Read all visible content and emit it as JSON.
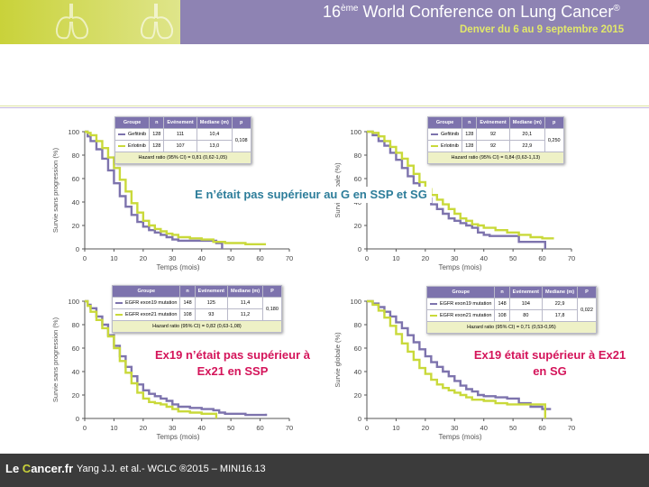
{
  "header": {
    "conference_sup": "ème",
    "conference_pre": "16",
    "conference_title": " World Conference on Lung Cancer",
    "conference_reg": "®",
    "conference_subtitle": "Denver du 6 au 9 septembre 2015"
  },
  "footer": {
    "logo_pre": "Le ",
    "logo_c": "C",
    "logo_rest": "ancer.fr",
    "reference": "Yang J.J. et al.- WCLC ®2015 – MINI16.13"
  },
  "notes": {
    "n1": "E n’était pas supérieur au G en SSP et SG",
    "n2": "Ex19 n’était pas supérieur à Ex21 en SSP",
    "n3": "Ex19 était supérieur à Ex21 en SG"
  },
  "colors": {
    "purple": "#7d73ad",
    "green": "#c9d93a",
    "header_purple": "#8e83b3"
  },
  "tables": [
    {
      "headers": [
        "Groupe",
        "n",
        "Evénement",
        "Mediane (m)",
        "p"
      ],
      "rows": [
        {
          "group": "Gefitinib",
          "n": "128",
          "events": "111",
          "median": "10,4",
          "color": "#7d73ad"
        },
        {
          "group": "Erlotinib",
          "n": "128",
          "events": "107",
          "median": "13,0",
          "color": "#c9d93a"
        }
      ],
      "p": "0,108",
      "hr": "Hazard ratio (95% CI) = 0,81 (0,62-1,05)"
    },
    {
      "headers": [
        "Groupe",
        "n",
        "Evénement",
        "Mediane (m)",
        "p"
      ],
      "rows": [
        {
          "group": "Gefitinib",
          "n": "128",
          "events": "92",
          "median": "20,1",
          "color": "#7d73ad"
        },
        {
          "group": "Erlotinib",
          "n": "128",
          "events": "92",
          "median": "22,9",
          "color": "#c9d93a"
        }
      ],
      "p": "0,250",
      "hr": "Hazard ratio (95% CI) = 0,84 (0,63-1,13)"
    },
    {
      "headers": [
        "Groupe",
        "n",
        "Evénement",
        "Mediane (m)",
        "P"
      ],
      "rows": [
        {
          "group": "EGFR exon19 mutation",
          "n": "148",
          "events": "125",
          "median": "11,4",
          "color": "#7d73ad"
        },
        {
          "group": "EGFR exon21 mutation",
          "n": "108",
          "events": "93",
          "median": "11,2",
          "color": "#c9d93a"
        }
      ],
      "p": "0,180",
      "hr": "Hazard ratio (95% CI) = 0,82 (0,63-1,08)"
    },
    {
      "headers": [
        "Groupe",
        "n",
        "Evénement",
        "Mediane (m)",
        "P"
      ],
      "rows": [
        {
          "group": "EGFR exon19 mutation",
          "n": "148",
          "events": "104",
          "median": "22,9",
          "color": "#7d73ad"
        },
        {
          "group": "EGFR exon21 mutation",
          "n": "108",
          "events": "80",
          "median": "17,8",
          "color": "#c9d93a"
        }
      ],
      "p": "0,022",
      "hr": "Hazard ratio (95% CI) = 0,71 (0,53-0,95)"
    }
  ],
  "chart_data": [
    {
      "type": "line",
      "xlabel": "Temps (mois)",
      "ylabel": "Survie sans progression (%)",
      "xlim": [
        0,
        70
      ],
      "ylim": [
        0,
        100
      ],
      "xticks": [
        0,
        10,
        20,
        30,
        40,
        50,
        60,
        70
      ],
      "yticks": [
        0,
        20,
        40,
        60,
        80,
        100
      ],
      "series": [
        {
          "name": "Gefitinib",
          "color": "#7d73ad",
          "points": [
            [
              0,
              100
            ],
            [
              1,
              96
            ],
            [
              2,
              92
            ],
            [
              4,
              85
            ],
            [
              6,
              77
            ],
            [
              8,
              67
            ],
            [
              10,
              56
            ],
            [
              12,
              45
            ],
            [
              14,
              36
            ],
            [
              16,
              29
            ],
            [
              18,
              23
            ],
            [
              20,
              19
            ],
            [
              22,
              16
            ],
            [
              24,
              14
            ],
            [
              26,
              12
            ],
            [
              28,
              10
            ],
            [
              30,
              8
            ],
            [
              32,
              7
            ],
            [
              40,
              7
            ],
            [
              45,
              5
            ],
            [
              47,
              5
            ],
            [
              47,
              0
            ]
          ]
        },
        {
          "name": "Erlotinib",
          "color": "#c9d93a",
          "points": [
            [
              0,
              100
            ],
            [
              1,
              99
            ],
            [
              2,
              97
            ],
            [
              4,
              92
            ],
            [
              6,
              86
            ],
            [
              8,
              78
            ],
            [
              10,
              69
            ],
            [
              12,
              59
            ],
            [
              14,
              49
            ],
            [
              16,
              39
            ],
            [
              18,
              31
            ],
            [
              20,
              24
            ],
            [
              22,
              20
            ],
            [
              24,
              17
            ],
            [
              26,
              15
            ],
            [
              28,
              13
            ],
            [
              30,
              12
            ],
            [
              32,
              10
            ],
            [
              36,
              9
            ],
            [
              40,
              8
            ],
            [
              44,
              6
            ],
            [
              48,
              5
            ],
            [
              55,
              4
            ],
            [
              62,
              4
            ]
          ]
        }
      ]
    },
    {
      "type": "line",
      "xlabel": "Temps (mois)",
      "ylabel": "Survie globale (%)",
      "xlim": [
        0,
        70
      ],
      "ylim": [
        0,
        100
      ],
      "xticks": [
        0,
        10,
        20,
        30,
        40,
        50,
        60,
        70
      ],
      "yticks": [
        0,
        20,
        40,
        60,
        80,
        100
      ],
      "series": [
        {
          "name": "Gefitinib",
          "color": "#7d73ad",
          "points": [
            [
              0,
              100
            ],
            [
              2,
              97
            ],
            [
              4,
              92
            ],
            [
              6,
              88
            ],
            [
              8,
              82
            ],
            [
              10,
              76
            ],
            [
              12,
              69
            ],
            [
              14,
              62
            ],
            [
              16,
              56
            ],
            [
              18,
              49
            ],
            [
              20,
              43
            ],
            [
              22,
              38
            ],
            [
              24,
              34
            ],
            [
              26,
              30
            ],
            [
              28,
              26
            ],
            [
              30,
              24
            ],
            [
              32,
              22
            ],
            [
              34,
              20
            ],
            [
              36,
              18
            ],
            [
              38,
              14
            ],
            [
              40,
              12
            ],
            [
              42,
              11
            ],
            [
              50,
              11
            ],
            [
              52,
              6
            ],
            [
              56,
              6
            ],
            [
              61,
              6
            ],
            [
              61,
              0
            ]
          ]
        },
        {
          "name": "Erlotinib",
          "color": "#c9d93a",
          "points": [
            [
              0,
              100
            ],
            [
              2,
              99
            ],
            [
              4,
              96
            ],
            [
              6,
              92
            ],
            [
              8,
              87
            ],
            [
              10,
              82
            ],
            [
              12,
              77
            ],
            [
              14,
              71
            ],
            [
              16,
              64
            ],
            [
              18,
              57
            ],
            [
              20,
              51
            ],
            [
              22,
              46
            ],
            [
              24,
              42
            ],
            [
              26,
              38
            ],
            [
              28,
              34
            ],
            [
              30,
              30
            ],
            [
              32,
              26
            ],
            [
              34,
              24
            ],
            [
              36,
              21
            ],
            [
              38,
              20
            ],
            [
              40,
              18
            ],
            [
              44,
              16
            ],
            [
              48,
              14
            ],
            [
              52,
              12
            ],
            [
              56,
              10
            ],
            [
              60,
              9
            ],
            [
              64,
              9
            ]
          ]
        }
      ]
    },
    {
      "type": "line",
      "xlabel": "Temps (mois)",
      "ylabel": "Survie sans progression (%)",
      "xlim": [
        0,
        70
      ],
      "ylim": [
        0,
        100
      ],
      "xticks": [
        0,
        10,
        20,
        30,
        40,
        50,
        60,
        70
      ],
      "yticks": [
        0,
        20,
        40,
        60,
        80,
        100
      ],
      "series": [
        {
          "name": "EGFR exon19 mutation",
          "color": "#7d73ad",
          "points": [
            [
              0,
              100
            ],
            [
              1,
              97
            ],
            [
              2,
              94
            ],
            [
              4,
              87
            ],
            [
              6,
              80
            ],
            [
              8,
              71
            ],
            [
              10,
              62
            ],
            [
              12,
              53
            ],
            [
              14,
              44
            ],
            [
              16,
              36
            ],
            [
              18,
              29
            ],
            [
              20,
              24
            ],
            [
              22,
              21
            ],
            [
              24,
              19
            ],
            [
              26,
              17
            ],
            [
              28,
              15
            ],
            [
              30,
              12
            ],
            [
              32,
              10
            ],
            [
              36,
              9
            ],
            [
              40,
              8
            ],
            [
              44,
              7
            ],
            [
              46,
              5
            ],
            [
              48,
              4
            ],
            [
              55,
              3
            ],
            [
              62,
              4
            ]
          ]
        },
        {
          "name": "EGFR exon21 mutation",
          "color": "#c9d93a",
          "points": [
            [
              0,
              100
            ],
            [
              1,
              96
            ],
            [
              2,
              91
            ],
            [
              4,
              84
            ],
            [
              6,
              77
            ],
            [
              8,
              70
            ],
            [
              10,
              60
            ],
            [
              12,
              49
            ],
            [
              14,
              39
            ],
            [
              16,
              30
            ],
            [
              18,
              22
            ],
            [
              20,
              17
            ],
            [
              22,
              14
            ],
            [
              24,
              13
            ],
            [
              26,
              12
            ],
            [
              28,
              10
            ],
            [
              30,
              8
            ],
            [
              32,
              6
            ],
            [
              36,
              5
            ],
            [
              40,
              4
            ],
            [
              45,
              4
            ],
            [
              45,
              0
            ]
          ]
        }
      ]
    },
    {
      "type": "line",
      "xlabel": "Temps (mois)",
      "ylabel": "Survie globale (%)",
      "xlim": [
        0,
        70
      ],
      "ylim": [
        0,
        100
      ],
      "xticks": [
        0,
        10,
        20,
        30,
        40,
        50,
        60,
        70
      ],
      "yticks": [
        0,
        20,
        40,
        60,
        80,
        100
      ],
      "series": [
        {
          "name": "EGFR exon19 mutation",
          "color": "#7d73ad",
          "points": [
            [
              0,
              100
            ],
            [
              2,
              98
            ],
            [
              4,
              95
            ],
            [
              6,
              91
            ],
            [
              8,
              87
            ],
            [
              10,
              82
            ],
            [
              12,
              77
            ],
            [
              14,
              71
            ],
            [
              16,
              65
            ],
            [
              18,
              59
            ],
            [
              20,
              53
            ],
            [
              22,
              48
            ],
            [
              24,
              44
            ],
            [
              26,
              40
            ],
            [
              28,
              36
            ],
            [
              30,
              32
            ],
            [
              32,
              28
            ],
            [
              34,
              25
            ],
            [
              36,
              23
            ],
            [
              38,
              20
            ],
            [
              40,
              19
            ],
            [
              44,
              18
            ],
            [
              48,
              17
            ],
            [
              52,
              13
            ],
            [
              56,
              10
            ],
            [
              60,
              8
            ],
            [
              63,
              8
            ]
          ]
        },
        {
          "name": "EGFR exon21 mutation",
          "color": "#c9d93a",
          "points": [
            [
              0,
              100
            ],
            [
              2,
              97
            ],
            [
              4,
              92
            ],
            [
              6,
              86
            ],
            [
              8,
              79
            ],
            [
              10,
              72
            ],
            [
              12,
              64
            ],
            [
              14,
              57
            ],
            [
              16,
              50
            ],
            [
              18,
              43
            ],
            [
              20,
              38
            ],
            [
              22,
              33
            ],
            [
              24,
              29
            ],
            [
              26,
              26
            ],
            [
              28,
              24
            ],
            [
              30,
              22
            ],
            [
              32,
              20
            ],
            [
              34,
              18
            ],
            [
              36,
              16
            ],
            [
              40,
              15
            ],
            [
              44,
              13
            ],
            [
              48,
              12
            ],
            [
              52,
              12
            ],
            [
              56,
              12
            ],
            [
              61,
              12
            ],
            [
              61,
              0
            ]
          ]
        }
      ]
    }
  ]
}
